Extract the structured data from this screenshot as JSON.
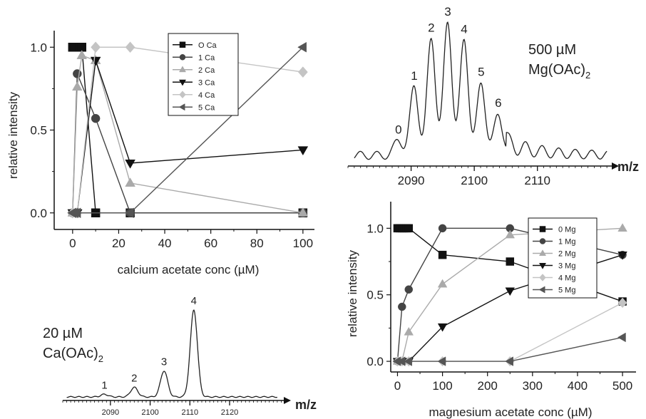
{
  "colors": {
    "black": "#111111",
    "dark_gray": "#444444",
    "light_gray": "#aaaaaa",
    "lighter_gray": "#c4c4c4",
    "mid_gray": "#555555"
  },
  "chart_data": [
    {
      "id": "ca-titration",
      "type": "line",
      "title": "",
      "xlabel": "calcium acetate conc (µM)",
      "ylabel": "relative intensity",
      "xlim": [
        -8,
        105
      ],
      "ylim": [
        -0.1,
        1.1
      ],
      "xticks": [
        0,
        20,
        40,
        60,
        80,
        100
      ],
      "yticks": [
        0.0,
        0.5,
        1.0
      ],
      "ytick_labels": [
        "0.0",
        "0.5",
        "1.0"
      ],
      "legend_position": "top-center",
      "series": [
        {
          "name": "O Ca",
          "marker": "square",
          "color": "#111111",
          "x": [
            0,
            1,
            2,
            3,
            4,
            10,
            25,
            100
          ],
          "y": [
            1.0,
            1.0,
            1.0,
            1.0,
            1.0,
            0.0,
            0.0,
            0.0
          ]
        },
        {
          "name": "1 Ca",
          "marker": "circle",
          "color": "#444444",
          "x": [
            0,
            2,
            10,
            25,
            100
          ],
          "y": [
            0.0,
            0.84,
            0.57,
            0.0,
            0.0
          ]
        },
        {
          "name": "2 Ca",
          "marker": "triangle-up",
          "color": "#aaaaaa",
          "x": [
            0,
            2,
            4,
            10,
            25,
            100
          ],
          "y": [
            0.0,
            0.76,
            0.95,
            0.92,
            0.18,
            0.0
          ]
        },
        {
          "name": "3 Ca",
          "marker": "triangle-down",
          "color": "#111111",
          "x": [
            0,
            2,
            10,
            25,
            100
          ],
          "y": [
            0.0,
            0.0,
            0.92,
            0.3,
            0.38
          ]
        },
        {
          "name": "4 Ca",
          "marker": "diamond",
          "color": "#c4c4c4",
          "x": [
            0,
            2,
            10,
            25,
            100
          ],
          "y": [
            0.0,
            0.0,
            1.0,
            1.0,
            0.85
          ]
        },
        {
          "name": "5 Ca",
          "marker": "triangle-left",
          "color": "#555555",
          "x": [
            0,
            1,
            2,
            25,
            100
          ],
          "y": [
            0.0,
            0.0,
            0.0,
            0.0,
            1.0
          ]
        }
      ]
    },
    {
      "id": "mg-spectrum",
      "type": "line",
      "title": "",
      "xlabel": "m/z",
      "annotation": "500 µM Mg(OAc)",
      "annotation_subscript": "2",
      "xlim": [
        2080,
        2122
      ],
      "xticks": [
        2090,
        2100,
        2110
      ],
      "peaks": [
        {
          "label": "0",
          "x": 2088.0,
          "height": 0.12
        },
        {
          "label": "1",
          "x": 2090.5,
          "height": 0.52
        },
        {
          "label": "2",
          "x": 2093.2,
          "height": 0.88
        },
        {
          "label": "3",
          "x": 2095.8,
          "height": 1.0
        },
        {
          "label": "4",
          "x": 2098.4,
          "height": 0.87
        },
        {
          "label": "5",
          "x": 2101.1,
          "height": 0.55
        },
        {
          "label": "6",
          "x": 2103.8,
          "height": 0.32
        }
      ]
    },
    {
      "id": "ca-spectrum",
      "type": "line",
      "title": "",
      "xlabel": "m/z",
      "annotation": "20 µM Ca(OAc)",
      "annotation_subscript": "2",
      "xlim": [
        2078,
        2134
      ],
      "xticks": [
        2090,
        2100,
        2110,
        2120
      ],
      "peaks": [
        {
          "label": "1",
          "x": 2088.5,
          "height": 0.03
        },
        {
          "label": "2",
          "x": 2096.0,
          "height": 0.11
        },
        {
          "label": "3",
          "x": 2103.5,
          "height": 0.3
        },
        {
          "label": "4",
          "x": 2111.0,
          "height": 1.0
        }
      ]
    },
    {
      "id": "mg-titration",
      "type": "line",
      "title": "",
      "xlabel": "magnesium acetate conc (µM)",
      "ylabel": "relative intensity",
      "xlim": [
        -15,
        530
      ],
      "ylim": [
        -0.08,
        1.2
      ],
      "xticks": [
        0,
        100,
        200,
        300,
        400,
        500
      ],
      "yticks": [
        0.0,
        0.5,
        1.0
      ],
      "ytick_labels": [
        "0.0",
        "0.5",
        "1.0"
      ],
      "legend_position": "top-right",
      "series": [
        {
          "name": "0 Mg",
          "marker": "square",
          "color": "#111111",
          "x": [
            0,
            5,
            10,
            15,
            20,
            25,
            100,
            250,
            500
          ],
          "y": [
            1.0,
            1.0,
            1.0,
            1.0,
            1.0,
            1.0,
            0.8,
            0.75,
            0.45
          ]
        },
        {
          "name": "1 Mg",
          "marker": "circle",
          "color": "#444444",
          "x": [
            0,
            10,
            25,
            100,
            250,
            500
          ],
          "y": [
            0.0,
            0.41,
            0.54,
            1.0,
            1.0,
            0.8
          ]
        },
        {
          "name": "2 Mg",
          "marker": "triangle-up",
          "color": "#aaaaaa",
          "x": [
            0,
            10,
            25,
            100,
            250,
            500
          ],
          "y": [
            0.0,
            0.0,
            0.22,
            0.58,
            0.95,
            1.0
          ]
        },
        {
          "name": "3 Mg",
          "marker": "triangle-down",
          "color": "#111111",
          "x": [
            0,
            10,
            25,
            100,
            250,
            500
          ],
          "y": [
            0.0,
            0.0,
            0.0,
            0.26,
            0.53,
            0.8
          ]
        },
        {
          "name": "4 Mg",
          "marker": "diamond",
          "color": "#c4c4c4",
          "x": [
            0,
            10,
            25,
            100,
            250,
            500
          ],
          "y": [
            0.0,
            0.0,
            0.0,
            0.0,
            0.0,
            0.44
          ]
        },
        {
          "name": "5 Mg",
          "marker": "triangle-left",
          "color": "#555555",
          "x": [
            0,
            10,
            25,
            100,
            250,
            500
          ],
          "y": [
            0.0,
            0.0,
            0.0,
            0.0,
            0.0,
            0.18
          ]
        }
      ]
    }
  ]
}
